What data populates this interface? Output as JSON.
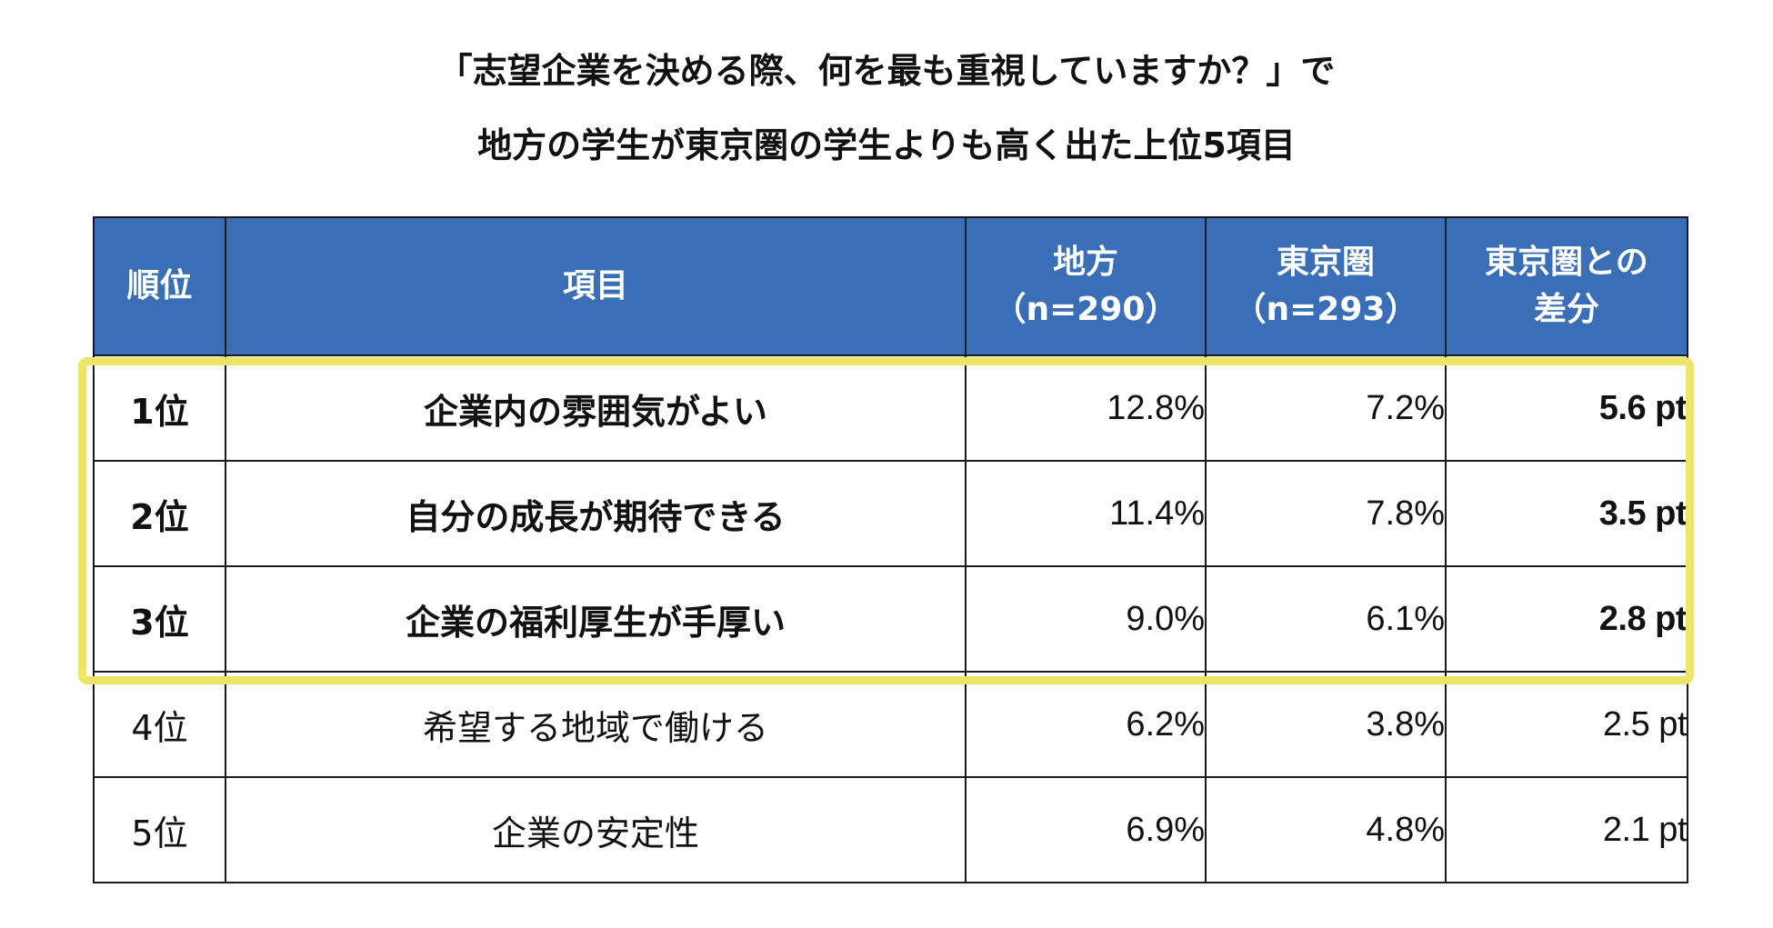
{
  "title": {
    "line1": "「志望企業を決める際、何を最も重視していますか？」で",
    "line2": "地方の学生が東京圏の学生よりも高く出た上位5項目"
  },
  "colors": {
    "header_bg": "#3a6fb8",
    "header_text": "#ffffff",
    "highlight": "#ede567",
    "border": "#1a1a1a"
  },
  "chart_data": {
    "type": "table",
    "title": "「志望企業を決める際、何を最も重視していますか？」で 地方の学生が東京圏の学生よりも高く出た上位5項目",
    "headers": [
      {
        "line1": "順位",
        "line2": ""
      },
      {
        "line1": "項目",
        "line2": ""
      },
      {
        "line1": "地方",
        "line2": "（n=290）"
      },
      {
        "line1": "東京圏",
        "line2": "（n=293）"
      },
      {
        "line1": "東京圏との",
        "line2": "差分"
      }
    ],
    "rows": [
      {
        "rank": "1位",
        "item": "企業内の雰囲気がよい",
        "local": "12.8%",
        "tokyo": "7.2%",
        "diff": "5.6 pt",
        "highlighted": true
      },
      {
        "rank": "2位",
        "item": "自分の成長が期待できる",
        "local": "11.4%",
        "tokyo": "7.8%",
        "diff": "3.5 pt",
        "highlighted": true
      },
      {
        "rank": "3位",
        "item": "企業の福利厚生が手厚い",
        "local": "9.0%",
        "tokyo": "6.1%",
        "diff": "2.8 pt",
        "highlighted": true
      },
      {
        "rank": "4位",
        "item": "希望する地域で働ける",
        "local": "6.2%",
        "tokyo": "3.8%",
        "diff": "2.5 pt",
        "highlighted": false
      },
      {
        "rank": "5位",
        "item": "企業の安定性",
        "local": "6.9%",
        "tokyo": "4.8%",
        "diff": "2.1 pt",
        "highlighted": false
      }
    ]
  }
}
